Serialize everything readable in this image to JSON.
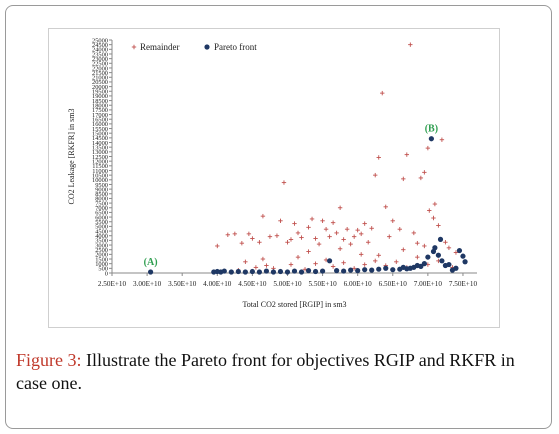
{
  "chart_data": {
    "type": "scatter",
    "title": "",
    "xlabel": "Total CO2 stored [RGIP] in sm3",
    "ylabel": "CO2 Leakage [RKFR] in  sm3",
    "xlim": [
      25000000000,
      77000000000
    ],
    "ylim": [
      0,
      25000
    ],
    "x_ticks": [
      "2.50E+10",
      "3.00E+10",
      "3.50E+10",
      "4.00E+10",
      "4.50E+10",
      "5.00E+10",
      "5.50E+10",
      "6.00E+10",
      "6.50E+10",
      "7.00E+10",
      "7.50E+10"
    ],
    "x_tick_values": [
      25000000000,
      30000000000,
      35000000000,
      40000000000,
      45000000000,
      50000000000,
      55000000000,
      60000000000,
      65000000000,
      70000000000,
      75000000000
    ],
    "y_ticks": [
      "0",
      "500",
      "1000",
      "1500",
      "2000",
      "2500",
      "3000",
      "3500",
      "4000",
      "4500",
      "5000",
      "5500",
      "6000",
      "6500",
      "7000",
      "7500",
      "8000",
      "8500",
      "9000",
      "9500",
      "10000",
      "10500",
      "11000",
      "11500",
      "12000",
      "12500",
      "13000",
      "13500",
      "14000",
      "14500",
      "15000",
      "15500",
      "16000",
      "16500",
      "17000",
      "17500",
      "18000",
      "18500",
      "19000",
      "19500",
      "20000",
      "20500",
      "21000",
      "21500",
      "22000",
      "22500",
      "23000",
      "23500",
      "24000",
      "24500",
      "25000"
    ],
    "legend_position": "top-left",
    "grid": false,
    "series": [
      {
        "name": "Remainder",
        "marker": "plus",
        "color": "#c0504d",
        "points": [
          [
            40000000000,
            2900
          ],
          [
            41500000000,
            4100
          ],
          [
            42500000000,
            4200
          ],
          [
            43500000000,
            3200
          ],
          [
            44500000000,
            4200
          ],
          [
            45000000000,
            3700
          ],
          [
            46000000000,
            3300
          ],
          [
            46500000000,
            6100
          ],
          [
            47500000000,
            3900
          ],
          [
            48500000000,
            4000
          ],
          [
            49000000000,
            5600
          ],
          [
            49500000000,
            9700
          ],
          [
            50000000000,
            3300
          ],
          [
            50500000000,
            3600
          ],
          [
            51000000000,
            5300
          ],
          [
            51500000000,
            4300
          ],
          [
            52000000000,
            3800
          ],
          [
            53000000000,
            4900
          ],
          [
            53500000000,
            5800
          ],
          [
            54000000000,
            3700
          ],
          [
            54500000000,
            3100
          ],
          [
            55000000000,
            5600
          ],
          [
            55500000000,
            4700
          ],
          [
            56000000000,
            3900
          ],
          [
            56500000000,
            5400
          ],
          [
            57000000000,
            4300
          ],
          [
            57500000000,
            7000
          ],
          [
            58000000000,
            3600
          ],
          [
            58500000000,
            4700
          ],
          [
            59000000000,
            3100
          ],
          [
            59500000000,
            3900
          ],
          [
            60000000000,
            4600
          ],
          [
            60500000000,
            4200
          ],
          [
            61000000000,
            5300
          ],
          [
            61500000000,
            3300
          ],
          [
            62000000000,
            4800
          ],
          [
            62500000000,
            10500
          ],
          [
            63000000000,
            12400
          ],
          [
            63500000000,
            19300
          ],
          [
            64000000000,
            7100
          ],
          [
            64500000000,
            3900
          ],
          [
            65000000000,
            5600
          ],
          [
            66000000000,
            4700
          ],
          [
            66500000000,
            10100
          ],
          [
            67000000000,
            12700
          ],
          [
            67500000000,
            24500
          ],
          [
            68000000000,
            4300
          ],
          [
            68500000000,
            3200
          ],
          [
            69000000000,
            10200
          ],
          [
            69500000000,
            10800
          ],
          [
            70000000000,
            13400
          ],
          [
            70200000000,
            6700
          ],
          [
            70800000000,
            5900
          ],
          [
            71000000000,
            7400
          ],
          [
            71500000000,
            5100
          ],
          [
            72000000000,
            14300
          ],
          [
            72500000000,
            3300
          ],
          [
            73000000000,
            2700
          ],
          [
            74000000000,
            2200
          ],
          [
            43000000000,
            300
          ],
          [
            45500000000,
            600
          ],
          [
            47000000000,
            800
          ],
          [
            48000000000,
            500
          ],
          [
            50500000000,
            900
          ],
          [
            52500000000,
            400
          ],
          [
            54000000000,
            1000
          ],
          [
            55500000000,
            1400
          ],
          [
            56500000000,
            700
          ],
          [
            58000000000,
            1100
          ],
          [
            59500000000,
            500
          ],
          [
            61000000000,
            900
          ],
          [
            62500000000,
            1300
          ],
          [
            64000000000,
            800
          ],
          [
            65500000000,
            1200
          ],
          [
            67000000000,
            600
          ],
          [
            68500000000,
            1700
          ],
          [
            70000000000,
            900
          ],
          [
            71500000000,
            1300
          ],
          [
            73500000000,
            600
          ],
          [
            53000000000,
            2300
          ],
          [
            57500000000,
            2600
          ],
          [
            60500000000,
            2000
          ],
          [
            66500000000,
            2500
          ],
          [
            69500000000,
            2900
          ],
          [
            63000000000,
            1900
          ],
          [
            51500000000,
            1700
          ],
          [
            46500000000,
            1500
          ],
          [
            44000000000,
            1200
          ]
        ]
      },
      {
        "name": "Pareto front",
        "marker": "circle",
        "color": "#1f3864",
        "points": [
          [
            30500000000,
            0
          ],
          [
            39500000000,
            0
          ],
          [
            40000000000,
            50
          ],
          [
            40500000000,
            0
          ],
          [
            41000000000,
            100
          ],
          [
            42000000000,
            0
          ],
          [
            43000000000,
            50
          ],
          [
            44000000000,
            0
          ],
          [
            45000000000,
            50
          ],
          [
            46000000000,
            0
          ],
          [
            47000000000,
            100
          ],
          [
            48000000000,
            0
          ],
          [
            49000000000,
            50
          ],
          [
            50000000000,
            0
          ],
          [
            51000000000,
            100
          ],
          [
            52000000000,
            0
          ],
          [
            53000000000,
            150
          ],
          [
            54000000000,
            50
          ],
          [
            55000000000,
            100
          ],
          [
            56000000000,
            1200
          ],
          [
            57000000000,
            150
          ],
          [
            58000000000,
            100
          ],
          [
            59000000000,
            200
          ],
          [
            60000000000,
            150
          ],
          [
            61000000000,
            250
          ],
          [
            62000000000,
            200
          ],
          [
            63000000000,
            300
          ],
          [
            64000000000,
            400
          ],
          [
            65000000000,
            250
          ],
          [
            66000000000,
            300
          ],
          [
            67000000000,
            350
          ],
          [
            67500000000,
            400
          ],
          [
            68000000000,
            500
          ],
          [
            68500000000,
            700
          ],
          [
            69000000000,
            600
          ],
          [
            69500000000,
            900
          ],
          [
            70000000000,
            1600
          ],
          [
            70500000000,
            14300
          ],
          [
            71000000000,
            2600
          ],
          [
            71500000000,
            1800
          ],
          [
            72000000000,
            1200
          ],
          [
            72500000000,
            700
          ],
          [
            73000000000,
            800
          ],
          [
            74500000000,
            2300
          ],
          [
            75000000000,
            1700
          ],
          [
            75300000000,
            1100
          ],
          [
            74000000000,
            400
          ],
          [
            73500000000,
            200
          ],
          [
            71800000000,
            3500
          ],
          [
            70800000000,
            2200
          ],
          [
            66500000000,
            500
          ]
        ]
      }
    ],
    "annotations": [
      {
        "text": "(A)",
        "x": 30500000000,
        "y": 0
      },
      {
        "text": "(B)",
        "x": 70500000000,
        "y": 14300
      }
    ]
  },
  "caption": {
    "label": "Figure 3:",
    "text": " Illustrate the Pareto front for objectives RGIP and RKFR in case one."
  }
}
